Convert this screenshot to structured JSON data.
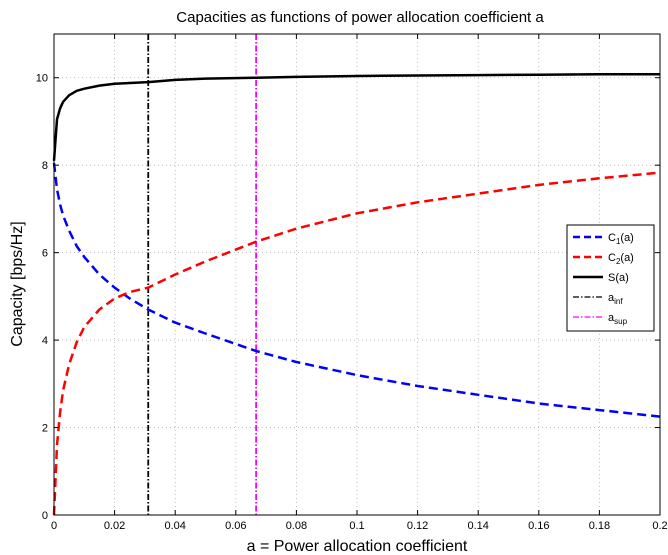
{
  "chart_data": {
    "type": "line",
    "title": "Capacities as functions of power allocation coefficient a",
    "xlabel": "a = Power allocation coefficient",
    "ylabel": "Capacity [bps/Hz]",
    "xlim": [
      0,
      0.2
    ],
    "ylim": [
      0,
      11
    ],
    "xticks": [
      "0",
      "0.02",
      "0.04",
      "0.06",
      "0.08",
      "0.1",
      "0.12",
      "0.14",
      "0.16",
      "0.18",
      "0.2"
    ],
    "yticks": [
      "0",
      "2",
      "4",
      "6",
      "8",
      "10"
    ],
    "grid": true,
    "legend_position": "right",
    "x": [
      0,
      0.001,
      0.002,
      0.003,
      0.005,
      0.0075,
      0.01,
      0.015,
      0.02,
      0.025,
      0.0311,
      0.04,
      0.05,
      0.0667,
      0.08,
      0.1,
      0.12,
      0.14,
      0.16,
      0.18,
      0.2
    ],
    "series": [
      {
        "legend_main": "C",
        "legend_sub": "1",
        "legend_tail": "(a)",
        "color": "#0000ff",
        "style": "dashed",
        "values": [
          8.05,
          7.45,
          7.1,
          6.85,
          6.5,
          6.15,
          5.9,
          5.5,
          5.2,
          4.95,
          4.7,
          4.4,
          4.15,
          3.75,
          3.5,
          3.2,
          2.95,
          2.75,
          2.55,
          2.4,
          2.25
        ]
      },
      {
        "legend_main": "C",
        "legend_sub": "2",
        "legend_tail": "(a)",
        "color": "#ff0000",
        "style": "dashed",
        "values": [
          0,
          1.6,
          2.35,
          2.85,
          3.45,
          3.95,
          4.3,
          4.7,
          4.95,
          5.1,
          5.2,
          5.5,
          5.8,
          6.25,
          6.55,
          6.9,
          7.15,
          7.35,
          7.55,
          7.7,
          7.83
        ]
      },
      {
        "legend_main": "S",
        "legend_sub": "",
        "legend_tail": "(a)",
        "color": "#000000",
        "style": "solid",
        "values": [
          8.1,
          9.05,
          9.3,
          9.45,
          9.6,
          9.7,
          9.75,
          9.82,
          9.86,
          9.88,
          9.9,
          9.95,
          9.98,
          10.0,
          10.02,
          10.04,
          10.05,
          10.06,
          10.07,
          10.08,
          10.08
        ]
      }
    ],
    "vertical_lines": [
      {
        "legend_main": "a",
        "legend_sub": "inf",
        "x": 0.0311,
        "color": "#000000",
        "style": "dashdot"
      },
      {
        "legend_main": "a",
        "legend_sub": "sup",
        "x": 0.0667,
        "color": "#ff00ff",
        "style": "dashdot"
      }
    ]
  }
}
